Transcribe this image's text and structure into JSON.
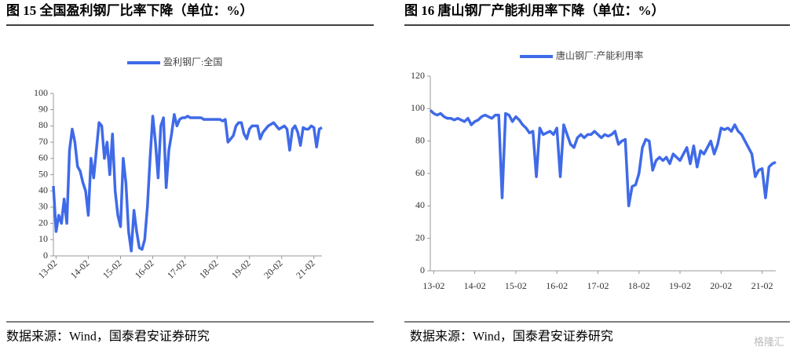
{
  "chart_data": [
    {
      "type": "line",
      "title": "图 15 全国盈利钢厂比率下降（单位：%）",
      "source": "数据来源：Wind，国泰君安证券研究",
      "categories": [
        null,
        "13-02",
        null,
        null,
        null,
        null,
        null,
        null,
        null,
        null,
        null,
        null,
        null,
        "14-02",
        null,
        null,
        null,
        null,
        null,
        null,
        null,
        null,
        null,
        null,
        null,
        "15-02",
        null,
        null,
        null,
        null,
        null,
        null,
        null,
        null,
        null,
        null,
        null,
        "16-02",
        null,
        null,
        null,
        null,
        null,
        null,
        null,
        null,
        null,
        null,
        null,
        "17-02",
        null,
        null,
        null,
        null,
        null,
        null,
        null,
        null,
        null,
        null,
        null,
        "18-02",
        null,
        null,
        null,
        null,
        null,
        null,
        null,
        null,
        null,
        null,
        null,
        "19-02",
        null,
        null,
        null,
        null,
        null,
        null,
        null,
        null,
        null,
        null,
        null,
        "20-02",
        null,
        null,
        null,
        null,
        null,
        null,
        null,
        null,
        null,
        null,
        null,
        "21-02",
        null,
        null,
        null
      ],
      "series": [
        {
          "name": "盈利钢厂:全国",
          "color": "#3f6ae8",
          "values": [
            43,
            15,
            25,
            20,
            35,
            20,
            65,
            78,
            70,
            55,
            52,
            45,
            40,
            25,
            60,
            48,
            65,
            82,
            80,
            60,
            70,
            50,
            75,
            40,
            25,
            18,
            60,
            45,
            15,
            3,
            28,
            15,
            5,
            4,
            10,
            30,
            60,
            86,
            70,
            48,
            80,
            85,
            42,
            65,
            75,
            87,
            80,
            84,
            85,
            85,
            86,
            85,
            85,
            85,
            85,
            85,
            84,
            84,
            84,
            84,
            84,
            84,
            84,
            83,
            84,
            70,
            72,
            74,
            80,
            82,
            82,
            75,
            72,
            78,
            80,
            80,
            80,
            72,
            76,
            78,
            80,
            81,
            82,
            80,
            78,
            79,
            80,
            78,
            65,
            78,
            80,
            76,
            68,
            79,
            78,
            78,
            80,
            79,
            67,
            78,
            79
          ]
        }
      ],
      "ylim": [
        0,
        100
      ],
      "yticks": [
        0,
        10,
        20,
        30,
        40,
        50,
        60,
        70,
        80,
        90,
        100
      ]
    },
    {
      "type": "line",
      "title": "图 16 唐山钢厂产能利用率下降（单位：%）",
      "source": "数据来源：Wind，国泰君安证券研究",
      "categories": [
        null,
        "13-02",
        null,
        null,
        null,
        null,
        null,
        null,
        null,
        null,
        null,
        null,
        null,
        "14-02",
        null,
        null,
        null,
        null,
        null,
        null,
        null,
        null,
        null,
        null,
        null,
        "15-02",
        null,
        null,
        null,
        null,
        null,
        null,
        null,
        null,
        null,
        null,
        null,
        "16-02",
        null,
        null,
        null,
        null,
        null,
        null,
        null,
        null,
        null,
        null,
        null,
        "17-02",
        null,
        null,
        null,
        null,
        null,
        null,
        null,
        null,
        null,
        null,
        null,
        "18-02",
        null,
        null,
        null,
        null,
        null,
        null,
        null,
        null,
        null,
        null,
        null,
        "19-02",
        null,
        null,
        null,
        null,
        null,
        null,
        null,
        null,
        null,
        null,
        null,
        "20-02",
        null,
        null,
        null,
        null,
        null,
        null,
        null,
        null,
        null,
        null,
        null,
        "21-02",
        null,
        null,
        null,
        null
      ],
      "series": [
        {
          "name": "唐山钢厂:产能利用率",
          "color": "#3f6ae8",
          "values": [
            99,
            97,
            96,
            97,
            95,
            94,
            94,
            93,
            94,
            93,
            92,
            94,
            90,
            92,
            93,
            95,
            96,
            95,
            94,
            96,
            96,
            45,
            97,
            96,
            92,
            95,
            93,
            90,
            88,
            85,
            86,
            58,
            88,
            84,
            85,
            86,
            84,
            88,
            58,
            90,
            84,
            78,
            76,
            82,
            84,
            82,
            84,
            84,
            86,
            84,
            82,
            84,
            83,
            84,
            86,
            78,
            80,
            81,
            40,
            52,
            53,
            60,
            76,
            81,
            80,
            62,
            68,
            70,
            68,
            70,
            66,
            72,
            70,
            68,
            72,
            76,
            66,
            77,
            64,
            74,
            72,
            76,
            80,
            72,
            78,
            88,
            87,
            88,
            86,
            90,
            86,
            84,
            80,
            76,
            72,
            58,
            62,
            63,
            45,
            64,
            66,
            67
          ]
        }
      ],
      "ylim": [
        0,
        120
      ],
      "yticks": [
        0,
        20,
        40,
        60,
        80,
        100,
        120
      ]
    }
  ],
  "watermark": "格隆汇"
}
